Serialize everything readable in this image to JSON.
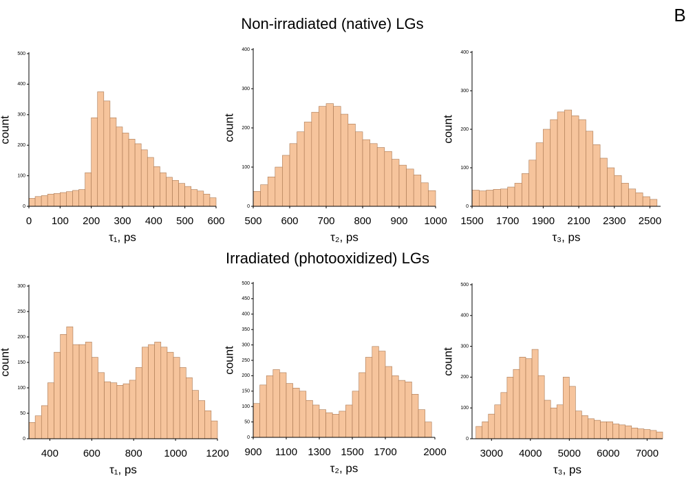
{
  "panel_label": "B",
  "row_titles": [
    "Non-irradiated (native) LGs",
    "Irradiated (photooxidized) LGs"
  ],
  "chart_data": [
    {
      "type": "histogram",
      "xlabel": "τ₁, ps",
      "ylabel": "count",
      "color": "#f6c49c",
      "edge_color": "#a87650",
      "bins": [
        0,
        20,
        40,
        60,
        80,
        100,
        120,
        140,
        160,
        180,
        200,
        220,
        240,
        260,
        280,
        300,
        320,
        340,
        360,
        380,
        400,
        420,
        440,
        460,
        480,
        500,
        520,
        540,
        560,
        580,
        600
      ],
      "counts": [
        26,
        32,
        35,
        40,
        42,
        45,
        48,
        52,
        55,
        110,
        290,
        375,
        345,
        290,
        260,
        240,
        220,
        205,
        185,
        160,
        130,
        110,
        95,
        85,
        75,
        65,
        55,
        50,
        40,
        28
      ],
      "xlim": [
        0,
        600
      ],
      "xticks": [
        0,
        100,
        200,
        300,
        400,
        500,
        600
      ],
      "ylim": [
        0,
        500
      ],
      "yticks": [
        0,
        100,
        200,
        300,
        400,
        500
      ]
    },
    {
      "type": "histogram",
      "xlabel": "τ₂, ps",
      "ylabel": "count",
      "color": "#f6c49c",
      "edge_color": "#a87650",
      "bins": [
        500,
        520,
        540,
        560,
        580,
        600,
        620,
        640,
        660,
        680,
        700,
        720,
        740,
        760,
        780,
        800,
        820,
        840,
        860,
        880,
        900,
        920,
        940,
        960,
        980,
        1000
      ],
      "counts": [
        38,
        55,
        75,
        100,
        130,
        160,
        190,
        215,
        240,
        255,
        262,
        255,
        235,
        210,
        190,
        170,
        160,
        150,
        140,
        120,
        105,
        95,
        80,
        60,
        40
      ],
      "xlim": [
        500,
        1000
      ],
      "xticks": [
        500,
        600,
        700,
        800,
        900,
        1000
      ],
      "ylim": [
        0,
        400
      ],
      "yticks": [
        0,
        100,
        200,
        300,
        400
      ]
    },
    {
      "type": "histogram",
      "xlabel": "τ₃, ps",
      "ylabel": "count",
      "color": "#f6c49c",
      "edge_color": "#a87650",
      "bins": [
        1500,
        1540,
        1580,
        1620,
        1660,
        1700,
        1740,
        1780,
        1820,
        1860,
        1900,
        1940,
        1980,
        2020,
        2060,
        2100,
        2140,
        2180,
        2220,
        2260,
        2300,
        2340,
        2380,
        2420,
        2460,
        2500,
        2540
      ],
      "counts": [
        42,
        40,
        42,
        44,
        45,
        50,
        60,
        85,
        120,
        165,
        200,
        225,
        245,
        250,
        235,
        225,
        195,
        160,
        125,
        100,
        80,
        60,
        45,
        35,
        25,
        18
      ],
      "xlim": [
        1500,
        2560
      ],
      "xticks": [
        1500,
        1700,
        1900,
        2100,
        2300,
        2500
      ],
      "ylim": [
        0,
        400
      ],
      "yticks": [
        0,
        100,
        200,
        300,
        400
      ]
    },
    {
      "type": "histogram",
      "xlabel": "τ₁, ps",
      "ylabel": "count",
      "color": "#f6c49c",
      "edge_color": "#a87650",
      "bins": [
        300,
        330,
        360,
        390,
        420,
        450,
        480,
        510,
        540,
        570,
        600,
        630,
        660,
        690,
        720,
        750,
        780,
        810,
        840,
        870,
        900,
        930,
        960,
        990,
        1020,
        1050,
        1080,
        1110,
        1140,
        1170,
        1200
      ],
      "counts": [
        32,
        45,
        65,
        110,
        170,
        205,
        220,
        185,
        185,
        190,
        160,
        130,
        112,
        110,
        105,
        108,
        115,
        140,
        180,
        185,
        190,
        180,
        170,
        160,
        140,
        120,
        95,
        75,
        55,
        35
      ],
      "xlim": [
        300,
        1200
      ],
      "xticks": [
        400,
        600,
        800,
        1000,
        1200
      ],
      "ylim": [
        0,
        300
      ],
      "yticks": [
        0,
        50,
        100,
        150,
        200,
        250,
        300
      ]
    },
    {
      "type": "histogram",
      "xlabel": "τ₂, ps",
      "ylabel": "count",
      "color": "#f6c49c",
      "edge_color": "#a87650",
      "bins": [
        900,
        940,
        980,
        1020,
        1060,
        1100,
        1140,
        1180,
        1220,
        1260,
        1300,
        1340,
        1380,
        1420,
        1460,
        1500,
        1540,
        1580,
        1620,
        1660,
        1700,
        1740,
        1780,
        1820,
        1860,
        1900,
        1940,
        1980
      ],
      "counts": [
        110,
        170,
        200,
        220,
        210,
        175,
        160,
        150,
        120,
        105,
        90,
        80,
        75,
        85,
        105,
        150,
        210,
        260,
        295,
        280,
        230,
        200,
        185,
        180,
        140,
        90,
        50
      ],
      "xlim": [
        900,
        2000
      ],
      "xticks": [
        900,
        1100,
        1300,
        1500,
        1700,
        2000
      ],
      "ylim": [
        0,
        500
      ],
      "yticks": [
        0,
        50,
        100,
        150,
        200,
        250,
        300,
        350,
        400,
        450,
        500
      ]
    },
    {
      "type": "histogram",
      "xlabel": "τ₃, ps",
      "ylabel": "count",
      "color": "#f6c49c",
      "edge_color": "#a87650",
      "bins": [
        2600,
        2760,
        2920,
        3080,
        3240,
        3400,
        3560,
        3720,
        3880,
        4040,
        4200,
        4360,
        4520,
        4680,
        4840,
        5000,
        5160,
        5320,
        5480,
        5640,
        5800,
        5960,
        6120,
        6280,
        6440,
        6600,
        6760,
        6920,
        7080,
        7240,
        7400
      ],
      "counts": [
        40,
        55,
        80,
        110,
        150,
        200,
        225,
        265,
        260,
        290,
        205,
        125,
        100,
        110,
        200,
        170,
        90,
        75,
        65,
        60,
        55,
        55,
        48,
        45,
        42,
        35,
        32,
        30,
        27,
        22
      ],
      "xlim": [
        2500,
        7400
      ],
      "xticks": [
        3000,
        4000,
        5000,
        6000,
        7000
      ],
      "ylim": [
        0,
        500
      ],
      "yticks": [
        0,
        100,
        200,
        300,
        400,
        500
      ]
    }
  ]
}
